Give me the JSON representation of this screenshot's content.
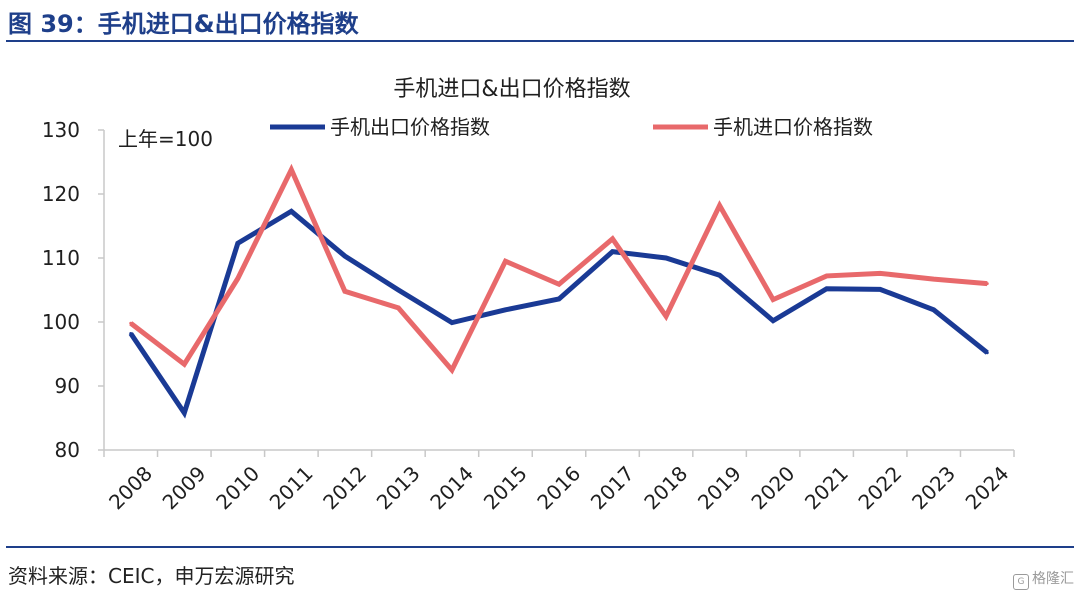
{
  "figure": {
    "title": "图 39：手机进口&出口价格指数",
    "source": "资料来源：CEIC，申万宏源研究",
    "watermark_text": "格隆汇",
    "watermark_icon": "gelonghui-logo-icon"
  },
  "colors": {
    "header": "#1e3f8a",
    "export_series": "#1a3a95",
    "import_series": "#e8696b",
    "axis": "#c8c8c8"
  },
  "chart_data": {
    "type": "line",
    "title": "手机进口&出口价格指数",
    "annotation": "上年=100",
    "ylim": [
      80,
      130
    ],
    "yticks": [
      80,
      90,
      100,
      110,
      120,
      130
    ],
    "grid": false,
    "legend_position": "top",
    "categories": [
      "2008",
      "2009",
      "2010",
      "2011",
      "2012",
      "2013",
      "2014",
      "2015",
      "2016",
      "2017",
      "2018",
      "2019",
      "2020",
      "2021",
      "2022",
      "2023",
      "2024"
    ],
    "series": [
      {
        "name": "手机出口价格指数",
        "color": "#1a3a95",
        "values": [
          98.2,
          85.8,
          112.3,
          117.3,
          110.3,
          105.0,
          99.9,
          101.9,
          103.6,
          111.0,
          110.0,
          107.3,
          100.2,
          105.2,
          105.1,
          101.9,
          95.2
        ]
      },
      {
        "name": "手机进口价格指数",
        "color": "#e8696b",
        "values": [
          99.8,
          93.4,
          106.8,
          123.8,
          104.8,
          102.2,
          92.5,
          109.5,
          105.9,
          113.0,
          100.9,
          118.2,
          103.5,
          107.2,
          107.6,
          106.7,
          106.0
        ]
      }
    ]
  }
}
